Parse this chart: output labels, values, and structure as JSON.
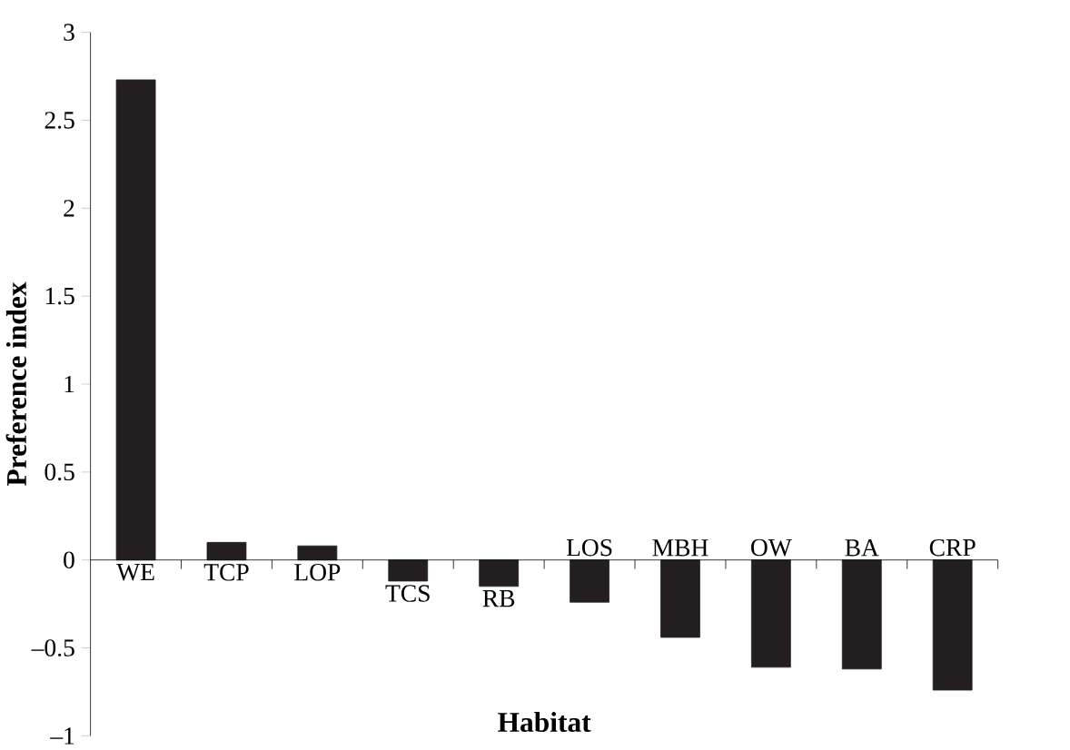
{
  "chart_data": {
    "type": "bar",
    "xlabel": "Habitat",
    "ylabel": "Preference index",
    "categories": [
      "WE",
      "TCP",
      "LOP",
      "TCS",
      "RB",
      "LOS",
      "MBH",
      "OW",
      "BA",
      "CRP"
    ],
    "values": [
      2.73,
      0.1,
      0.08,
      -0.12,
      -0.15,
      -0.24,
      -0.44,
      -0.61,
      -0.62,
      -0.74
    ],
    "color": "#231f20",
    "ylim": [
      -1,
      3
    ],
    "yticks": [
      {
        "value": -1,
        "label": "–1"
      },
      {
        "value": -0.5,
        "label": "–0.5"
      },
      0,
      0.5,
      1,
      1.5,
      2,
      2.5,
      3
    ],
    "grid": false
  }
}
